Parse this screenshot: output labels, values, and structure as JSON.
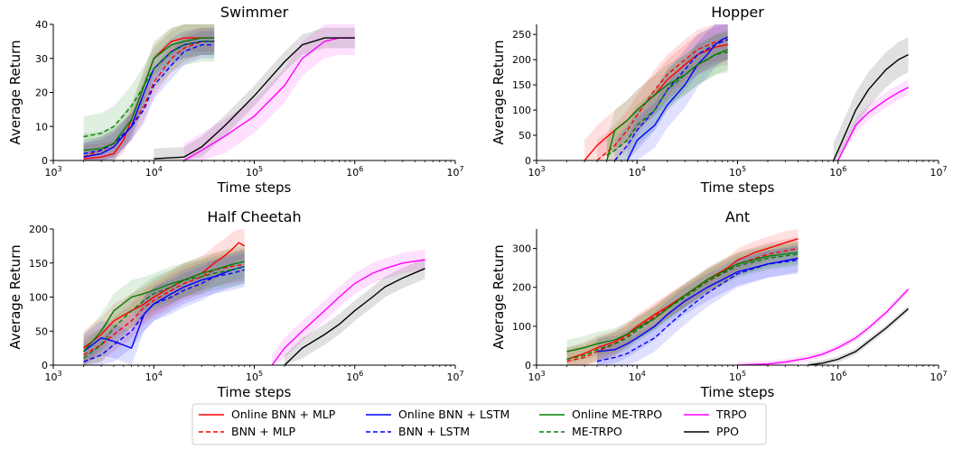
{
  "colors": {
    "online_bnn_mlp": "#ff0000",
    "bnn_mlp": "#ff0000",
    "online_bnn_lstm": "#0000ff",
    "bnn_lstm": "#0000ff",
    "online_me_trpo": "#008000",
    "me_trpo": "#008000",
    "trpo": "#ff00ff",
    "ppo": "#000000"
  },
  "legend": {
    "placement": "bottom-center",
    "entries": [
      {
        "key": "online_bnn_mlp",
        "label": "Online BNN + MLP",
        "dashed": false
      },
      {
        "key": "bnn_mlp",
        "label": "BNN + MLP",
        "dashed": true
      },
      {
        "key": "online_bnn_lstm",
        "label": "Online BNN + LSTM",
        "dashed": false
      },
      {
        "key": "bnn_lstm",
        "label": "BNN + LSTM",
        "dashed": true
      },
      {
        "key": "online_me_trpo",
        "label": "Online ME-TRPO",
        "dashed": false
      },
      {
        "key": "me_trpo",
        "label": "ME-TRPO",
        "dashed": true
      },
      {
        "key": "trpo",
        "label": "TRPO",
        "dashed": false
      },
      {
        "key": "ppo",
        "label": "PPO",
        "dashed": false
      }
    ]
  },
  "chart_data": [
    {
      "type": "line",
      "title": "Swimmer",
      "xlabel": "Time steps",
      "ylabel": "Average Return",
      "xscale": "log",
      "xlim": [
        1000,
        10000000
      ],
      "ylim": [
        0,
        40
      ],
      "yticks": [
        0,
        10,
        20,
        30,
        40
      ],
      "xtick_labels": [
        "10^3",
        "10^4",
        "10^5",
        "10^6",
        "10^7"
      ],
      "series": [
        {
          "key": "online_bnn_mlp",
          "x": [
            2000,
            3000,
            4000,
            5000,
            6000,
            8000,
            10000,
            15000,
            20000,
            30000,
            40000
          ],
          "y": [
            0.5,
            1,
            2,
            6,
            12,
            22,
            30,
            35,
            36,
            36,
            36
          ],
          "band": 4
        },
        {
          "key": "bnn_mlp",
          "x": [
            2000,
            3000,
            4000,
            6000,
            8000,
            10000,
            15000,
            20000,
            30000,
            40000
          ],
          "y": [
            1,
            3,
            5,
            10,
            16,
            23,
            30,
            33,
            35,
            35
          ],
          "band": 4
        },
        {
          "key": "online_bnn_lstm",
          "x": [
            2000,
            3000,
            4000,
            6000,
            8000,
            10000,
            15000,
            20000,
            30000,
            40000
          ],
          "y": [
            1,
            2,
            4,
            10,
            20,
            27,
            32,
            34,
            35,
            35
          ],
          "band": 4
        },
        {
          "key": "bnn_lstm",
          "x": [
            2000,
            3000,
            4000,
            6000,
            8000,
            10000,
            15000,
            20000,
            30000,
            40000
          ],
          "y": [
            2,
            3,
            5,
            10,
            15,
            22,
            28,
            32,
            34,
            34
          ],
          "band": 4
        },
        {
          "key": "online_me_trpo",
          "x": [
            2000,
            3000,
            4000,
            6000,
            8000,
            10000,
            15000,
            20000,
            30000,
            40000
          ],
          "y": [
            3,
            3.5,
            5,
            12,
            22,
            30,
            34,
            35,
            36,
            36
          ],
          "band": 5
        },
        {
          "key": "me_trpo",
          "x": [
            2000,
            3000,
            4000,
            6000,
            8000,
            10000,
            15000,
            20000,
            30000,
            40000
          ],
          "y": [
            7,
            8,
            10,
            16,
            22,
            27,
            32,
            34,
            35,
            35
          ],
          "band": 6
        },
        {
          "key": "trpo",
          "x": [
            20000,
            30000,
            50000,
            100000,
            200000,
            300000,
            500000,
            700000,
            1000000
          ],
          "y": [
            0,
            3,
            7,
            13,
            22,
            30,
            35,
            36,
            36
          ],
          "band": 5
        },
        {
          "key": "ppo",
          "x": [
            10000,
            20000,
            30000,
            50000,
            100000,
            200000,
            300000,
            500000,
            700000,
            1000000
          ],
          "y": [
            0.5,
            1,
            4,
            10,
            19,
            29,
            34,
            36,
            36,
            36
          ],
          "band": 3
        }
      ]
    },
    {
      "type": "line",
      "title": "Hopper",
      "xlabel": "Time steps",
      "ylabel": "Average Return",
      "xscale": "log",
      "xlim": [
        1000,
        10000000
      ],
      "ylim": [
        0,
        270
      ],
      "yticks": [
        0,
        50,
        100,
        150,
        200,
        250
      ],
      "xtick_labels": [
        "10^3",
        "10^4",
        "10^5",
        "10^6",
        "10^7"
      ],
      "series": [
        {
          "key": "online_bnn_mlp",
          "x": [
            3000,
            4000,
            6000,
            8000,
            10000,
            15000,
            20000,
            30000,
            40000,
            60000,
            80000
          ],
          "y": [
            0,
            30,
            60,
            80,
            100,
            130,
            160,
            190,
            210,
            225,
            230
          ],
          "band": 40
        },
        {
          "key": "bnn_mlp",
          "x": [
            4000,
            6000,
            8000,
            10000,
            15000,
            20000,
            30000,
            40000,
            60000,
            80000
          ],
          "y": [
            0,
            30,
            60,
            90,
            140,
            170,
            200,
            220,
            235,
            240
          ],
          "band": 40
        },
        {
          "key": "online_bnn_lstm",
          "x": [
            8000,
            10000,
            15000,
            20000,
            30000,
            40000,
            50000,
            60000,
            70000,
            80000
          ],
          "y": [
            0,
            40,
            70,
            110,
            150,
            190,
            210,
            230,
            240,
            245
          ],
          "band": 45
        },
        {
          "key": "bnn_lstm",
          "x": [
            6000,
            8000,
            10000,
            15000,
            20000,
            30000,
            40000,
            60000,
            80000
          ],
          "y": [
            0,
            30,
            60,
            100,
            140,
            180,
            210,
            230,
            240
          ],
          "band": 40
        },
        {
          "key": "online_me_trpo",
          "x": [
            5000,
            6000,
            8000,
            10000,
            15000,
            20000,
            30000,
            40000,
            50000,
            60000,
            80000
          ],
          "y": [
            0,
            60,
            80,
            100,
            130,
            150,
            170,
            190,
            200,
            210,
            220
          ],
          "band": 40
        },
        {
          "key": "me_trpo",
          "x": [
            5000,
            6000,
            8000,
            10000,
            15000,
            20000,
            30000,
            40000,
            60000,
            80000
          ],
          "y": [
            10,
            20,
            40,
            70,
            100,
            140,
            170,
            190,
            210,
            215
          ],
          "band": 40
        },
        {
          "key": "trpo",
          "x": [
            1000000,
            1500000,
            2000000,
            3000000,
            4000000,
            5000000
          ],
          "y": [
            0,
            70,
            95,
            120,
            135,
            145
          ],
          "band": 15
        },
        {
          "key": "ppo",
          "x": [
            900000,
            1000000,
            1500000,
            2000000,
            3000000,
            4000000,
            5000000
          ],
          "y": [
            0,
            20,
            100,
            140,
            180,
            200,
            210
          ],
          "band": 35
        }
      ]
    },
    {
      "type": "line",
      "title": "Half Cheetah",
      "xlabel": "Time steps",
      "ylabel": "Average Return",
      "xscale": "log",
      "xlim": [
        1000,
        10000000
      ],
      "ylim": [
        0,
        200
      ],
      "yticks": [
        0,
        50,
        100,
        150,
        200
      ],
      "xtick_labels": [
        "10^3",
        "10^4",
        "10^5",
        "10^6",
        "10^7"
      ],
      "series": [
        {
          "key": "online_bnn_mlp",
          "x": [
            2000,
            3000,
            4000,
            6000,
            8000,
            10000,
            15000,
            20000,
            30000,
            40000,
            50000,
            60000,
            70000,
            80000
          ],
          "y": [
            25,
            45,
            65,
            80,
            90,
            100,
            115,
            125,
            135,
            150,
            160,
            170,
            180,
            175
          ],
          "band": 25
        },
        {
          "key": "bnn_mlp",
          "x": [
            2000,
            3000,
            4000,
            6000,
            8000,
            10000,
            15000,
            20000,
            30000,
            40000,
            60000,
            80000
          ],
          "y": [
            15,
            30,
            45,
            65,
            85,
            95,
            110,
            120,
            130,
            140,
            145,
            148
          ],
          "band": 25
        },
        {
          "key": "online_bnn_lstm",
          "x": [
            2000,
            3000,
            4000,
            6000,
            8000,
            10000,
            15000,
            20000,
            30000,
            40000,
            60000,
            80000
          ],
          "y": [
            20,
            40,
            35,
            25,
            75,
            90,
            105,
            115,
            125,
            130,
            140,
            145
          ],
          "band": 25
        },
        {
          "key": "bnn_lstm",
          "x": [
            2000,
            3000,
            4000,
            6000,
            8000,
            10000,
            15000,
            20000,
            30000,
            40000,
            60000,
            80000
          ],
          "y": [
            5,
            15,
            30,
            50,
            75,
            90,
            100,
            110,
            120,
            130,
            135,
            140
          ],
          "band": 25
        },
        {
          "key": "online_me_trpo",
          "x": [
            2000,
            3000,
            4000,
            6000,
            8000,
            10000,
            15000,
            20000,
            30000,
            40000,
            60000,
            80000
          ],
          "y": [
            20,
            50,
            80,
            100,
            105,
            110,
            120,
            125,
            135,
            140,
            148,
            152
          ],
          "band": 25
        },
        {
          "key": "me_trpo",
          "x": [
            2000,
            3000,
            4000,
            6000,
            8000,
            10000,
            15000,
            20000,
            30000,
            40000,
            60000,
            80000
          ],
          "y": [
            10,
            30,
            55,
            80,
            95,
            105,
            115,
            125,
            130,
            135,
            140,
            145
          ],
          "band": 25
        },
        {
          "key": "trpo",
          "x": [
            150000,
            200000,
            300000,
            500000,
            700000,
            1000000,
            1500000,
            2000000,
            3000000,
            5000000
          ],
          "y": [
            0,
            25,
            50,
            80,
            100,
            120,
            135,
            142,
            150,
            155
          ],
          "band": 15
        },
        {
          "key": "ppo",
          "x": [
            200000,
            300000,
            500000,
            700000,
            1000000,
            1500000,
            2000000,
            3000000,
            5000000
          ],
          "y": [
            0,
            25,
            45,
            60,
            80,
            100,
            115,
            128,
            142
          ],
          "band": 15
        }
      ]
    },
    {
      "type": "line",
      "title": "Ant",
      "xlabel": "Time steps",
      "ylabel": "Average Return",
      "xscale": "log",
      "xlim": [
        1000,
        10000000
      ],
      "ylim": [
        0,
        350
      ],
      "yticks": [
        0,
        100,
        200,
        300
      ],
      "xtick_labels": [
        "10^3",
        "10^4",
        "10^5",
        "10^6",
        "10^7"
      ],
      "series": [
        {
          "key": "online_bnn_mlp",
          "x": [
            2000,
            3000,
            4000,
            6000,
            8000,
            10000,
            15000,
            20000,
            30000,
            50000,
            80000,
            100000,
            150000,
            200000,
            300000,
            400000
          ],
          "y": [
            15,
            30,
            45,
            60,
            80,
            100,
            130,
            150,
            180,
            220,
            250,
            270,
            290,
            300,
            315,
            325
          ],
          "band": 30
        },
        {
          "key": "bnn_mlp",
          "x": [
            2000,
            3000,
            4000,
            6000,
            8000,
            10000,
            15000,
            20000,
            30000,
            50000,
            100000,
            200000,
            400000
          ],
          "y": [
            10,
            20,
            35,
            55,
            75,
            95,
            125,
            150,
            180,
            215,
            260,
            285,
            300
          ],
          "band": 30
        },
        {
          "key": "online_bnn_lstm",
          "x": [
            4000,
            6000,
            8000,
            10000,
            15000,
            20000,
            30000,
            50000,
            100000,
            200000,
            400000
          ],
          "y": [
            35,
            40,
            55,
            70,
            100,
            130,
            165,
            200,
            240,
            260,
            275
          ],
          "band": 35
        },
        {
          "key": "bnn_lstm",
          "x": [
            4000,
            6000,
            8000,
            10000,
            15000,
            20000,
            30000,
            50000,
            100000,
            200000,
            400000
          ],
          "y": [
            10,
            20,
            30,
            45,
            70,
            100,
            140,
            185,
            235,
            260,
            270
          ],
          "band": 35
        },
        {
          "key": "online_me_trpo",
          "x": [
            2000,
            3000,
            4000,
            6000,
            8000,
            10000,
            15000,
            20000,
            30000,
            50000,
            100000,
            200000,
            400000
          ],
          "y": [
            35,
            45,
            55,
            65,
            80,
            95,
            120,
            145,
            180,
            220,
            260,
            280,
            290
          ],
          "band": 30
        },
        {
          "key": "me_trpo",
          "x": [
            2000,
            3000,
            4000,
            6000,
            8000,
            10000,
            15000,
            20000,
            30000,
            50000,
            100000,
            200000,
            400000
          ],
          "y": [
            15,
            25,
            40,
            55,
            70,
            90,
            120,
            145,
            175,
            215,
            255,
            275,
            285
          ],
          "band": 30
        },
        {
          "key": "trpo",
          "x": [
            100000,
            200000,
            300000,
            500000,
            700000,
            1000000,
            1500000,
            2000000,
            3000000,
            5000000
          ],
          "y": [
            0,
            3,
            8,
            18,
            28,
            45,
            70,
            95,
            135,
            195
          ],
          "band": 8
        },
        {
          "key": "ppo",
          "x": [
            500000,
            700000,
            1000000,
            1500000,
            2000000,
            3000000,
            5000000
          ],
          "y": [
            0,
            5,
            15,
            35,
            60,
            95,
            145
          ],
          "band": 8
        }
      ]
    }
  ]
}
